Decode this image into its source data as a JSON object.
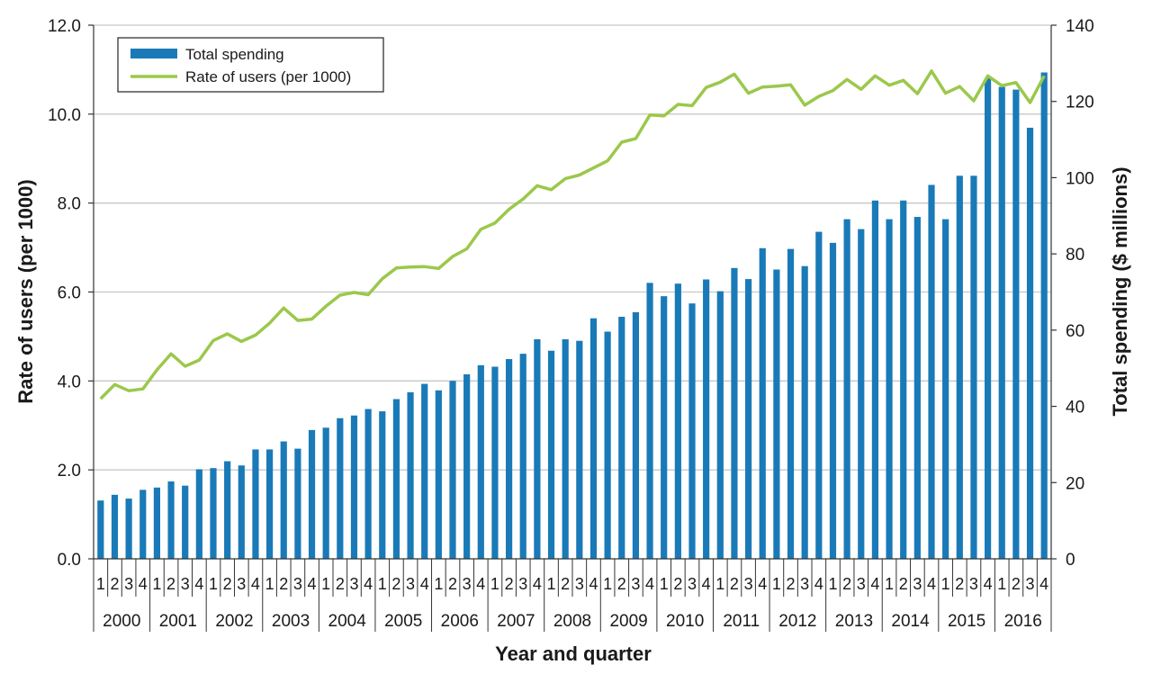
{
  "chart_data": {
    "type": "bar+line",
    "xlabel": "Year and quarter",
    "ylabel_left": "Rate  of  users (per 1000)",
    "ylabel_right": "Total spending ($ millions)",
    "ylim_left": [
      0,
      12
    ],
    "ylim_right": [
      0,
      140
    ],
    "yticks_left": [
      "0.0",
      "2.0",
      "4.0",
      "6.0",
      "8.0",
      "10.0",
      "12.0"
    ],
    "yticks_right": [
      "0",
      "20",
      "40",
      "60",
      "80",
      "100",
      "120",
      "140"
    ],
    "grid": "horizontal",
    "legend_position": "top-left",
    "years": [
      "2000",
      "2001",
      "2002",
      "2003",
      "2004",
      "2005",
      "2006",
      "2007",
      "2008",
      "2009",
      "2010",
      "2011",
      "2012",
      "2013",
      "2014",
      "2015",
      "2016"
    ],
    "quarters": [
      "1",
      "2",
      "3",
      "4"
    ],
    "series": [
      {
        "name": "Total spending",
        "kind": "bar",
        "axis": "right",
        "color": "#1a7ab8",
        "values": [
          15.3,
          16.8,
          15.8,
          18.1,
          18.7,
          20.3,
          19.2,
          23.5,
          23.8,
          25.6,
          24.5,
          28.7,
          28.7,
          30.8,
          28.9,
          33.8,
          34.4,
          36.9,
          37.6,
          39.3,
          38.7,
          41.9,
          43.7,
          45.9,
          44.2,
          46.7,
          48.4,
          50.8,
          50.4,
          52.4,
          53.8,
          57.6,
          54.6,
          57.6,
          57.2,
          63.1,
          59.6,
          63.5,
          64.7,
          72.4,
          68.9,
          72.2,
          67.0,
          73.3,
          70.2,
          76.3,
          73.4,
          81.5,
          75.9,
          81.3,
          76.8,
          85.8,
          82.9,
          89.1,
          86.5,
          94.0,
          89.1,
          94.0,
          89.7,
          98.1,
          89.1,
          100.5,
          100.5,
          126.2,
          123.8,
          123.1,
          113.1,
          127.6
        ]
      },
      {
        "name": "Rate of users (per 1000)",
        "kind": "line",
        "axis": "left",
        "color": "#9bc84b",
        "values": [
          3.6,
          3.92,
          3.78,
          3.82,
          4.25,
          4.61,
          4.33,
          4.47,
          4.91,
          5.06,
          4.89,
          5.03,
          5.3,
          5.64,
          5.36,
          5.39,
          5.68,
          5.93,
          5.99,
          5.94,
          6.3,
          6.54,
          6.56,
          6.57,
          6.53,
          6.8,
          6.97,
          7.41,
          7.55,
          7.86,
          8.09,
          8.39,
          8.3,
          8.55,
          8.63,
          8.79,
          8.95,
          9.37,
          9.45,
          9.98,
          9.96,
          10.22,
          10.19,
          10.6,
          10.72,
          10.9,
          10.47,
          10.61,
          10.63,
          10.66,
          10.2,
          10.4,
          10.53,
          10.78,
          10.56,
          10.86,
          10.65,
          10.76,
          10.46,
          10.97,
          10.47,
          10.62,
          10.3,
          10.86,
          10.64,
          10.71,
          10.26,
          10.86
        ]
      }
    ]
  }
}
